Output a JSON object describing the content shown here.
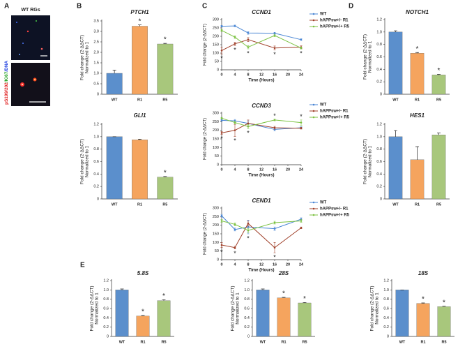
{
  "figure": {
    "panel_labels": [
      "A",
      "B",
      "C",
      "D",
      "E"
    ],
    "image_title": "WT RGs",
    "stain_label": [
      "pS199/202",
      "/Ki67",
      "/DNA"
    ]
  },
  "chart_data": [
    {
      "type": "bar",
      "title": "PTCH1",
      "ylabel": [
        "Fold change (2-ΔΔCT)",
        "Normalized to 1"
      ],
      "categories": [
        "WT",
        "R1",
        "R5"
      ],
      "values": [
        1.0,
        3.25,
        2.4
      ],
      "errors": [
        0.15,
        0.06,
        0.03
      ],
      "colors": [
        "#5b8fcc",
        "#f5a45e",
        "#a8c77c"
      ],
      "significance": [
        null,
        "*",
        "*"
      ],
      "ylim": [
        0,
        3.5
      ],
      "yticks": [
        0,
        0.5,
        {
          "value": 1,
          "label": "1.0"
        },
        1.5,
        {
          "value": 2,
          "label": "2.0"
        },
        2.5,
        {
          "value": 3,
          "label": "3.0"
        },
        3.5
      ]
    },
    {
      "type": "bar",
      "title": "GLI1",
      "ylabel": [
        "Fold change (2-ΔΔCT)",
        "Normalized to 1"
      ],
      "categories": [
        "WT",
        "R1",
        "R5"
      ],
      "values": [
        1.0,
        0.95,
        0.35
      ],
      "errors": [
        0.0,
        0.01,
        0.01
      ],
      "colors": [
        "#5b8fcc",
        "#f5a45e",
        "#a8c77c"
      ],
      "significance": [
        null,
        null,
        "*"
      ],
      "ylim": [
        0,
        1.2
      ],
      "yticks": [
        0,
        0.2,
        0.4,
        0.6,
        0.8,
        {
          "value": 1,
          "label": "1.0"
        },
        1.2
      ]
    },
    {
      "type": "line",
      "title": "CCND1",
      "ylabel": "Fold change (2-ΔΔCT)",
      "xlabel": "Time (Hours)",
      "x": [
        0,
        4,
        8,
        16,
        24
      ],
      "series": [
        {
          "name": "WT",
          "color": "#4a86d4",
          "values": [
            260,
            262,
            220,
            218,
            180
          ],
          "errors": [
            5,
            5,
            8,
            6,
            5
          ]
        },
        {
          "name": "hAPPsw+/- R1",
          "color": "#a0402a",
          "values": [
            115,
            155,
            180,
            130,
            135
          ],
          "errors": [
            20,
            10,
            12,
            12,
            8
          ]
        },
        {
          "name": "hAPPsw+/+ R5",
          "color": "#7cc242",
          "values": [
            235,
            195,
            135,
            205,
            130
          ],
          "errors": [
            6,
            8,
            10,
            8,
            6
          ]
        }
      ],
      "significance": [
        "*",
        "*",
        "*",
        "*",
        "*"
      ],
      "xlim": [
        0,
        24
      ],
      "xticks": [
        0,
        4,
        8,
        12,
        16,
        20,
        24
      ],
      "ylim": [
        0,
        300
      ],
      "yticks": [
        0,
        50,
        100,
        150,
        200,
        250,
        300
      ]
    },
    {
      "type": "line",
      "title": "CCND3",
      "ylabel": "Fold change (2-ΔΔCT)",
      "xlabel": "Time (Hours)",
      "x": [
        0,
        4,
        8,
        16,
        24
      ],
      "series": [
        {
          "name": "WT",
          "color": "#4a86d4",
          "values": [
            258,
            255,
            240,
            205,
            215
          ],
          "errors": [
            5,
            8,
            15,
            8,
            5
          ]
        },
        {
          "name": "hAPPsw+/- R1",
          "color": "#a0402a",
          "values": [
            185,
            200,
            240,
            215,
            212
          ],
          "errors": [
            8,
            35,
            20,
            8,
            5
          ]
        },
        {
          "name": "hAPPsw+/+ R5",
          "color": "#7cc242",
          "values": [
            270,
            245,
            222,
            260,
            245
          ],
          "errors": [
            5,
            8,
            12,
            5,
            15
          ]
        }
      ],
      "significance": [
        "*",
        "*",
        "*",
        "*",
        "*"
      ],
      "xlim": [
        0,
        24
      ],
      "xticks": [
        0,
        4,
        8,
        12,
        16,
        20,
        24
      ],
      "ylim": [
        0,
        300
      ],
      "yticks": [
        0,
        50,
        100,
        150,
        200,
        250,
        300
      ]
    },
    {
      "type": "line",
      "title": "CEND1",
      "ylabel": "Fold change (2-ΔΔCT)",
      "xlabel": "Time (Hours)",
      "x": [
        0,
        4,
        8,
        16,
        24
      ],
      "series": [
        {
          "name": "WT",
          "color": "#4a86d4",
          "values": [
            255,
            175,
            190,
            180,
            235
          ],
          "errors": [
            8,
            8,
            40,
            10,
            8
          ]
        },
        {
          "name": "hAPPsw+/- R1",
          "color": "#a0402a",
          "values": [
            85,
            70,
            210,
            70,
            185
          ],
          "errors": [
            15,
            8,
            15,
            30,
            5
          ]
        },
        {
          "name": "hAPPsw+/+ R5",
          "color": "#7cc242",
          "values": [
            225,
            205,
            170,
            215,
            225
          ],
          "errors": [
            8,
            8,
            12,
            8,
            8
          ]
        }
      ],
      "significance": [
        "*",
        "*",
        "*",
        "*",
        null
      ],
      "xlim": [
        0,
        24
      ],
      "xticks": [
        0,
        4,
        8,
        12,
        16,
        20,
        24
      ],
      "ylim": [
        0,
        300
      ],
      "yticks": [
        0,
        50,
        100,
        150,
        200,
        250,
        300
      ]
    },
    {
      "type": "bar",
      "title": "NOTCH1",
      "ylabel": [
        "Fold change (2-ΔΔCT)",
        "Normalized to 1"
      ],
      "categories": [
        "WT",
        "R1",
        "R5"
      ],
      "values": [
        1.0,
        0.66,
        0.31
      ],
      "errors": [
        0.02,
        0.01,
        0.01
      ],
      "colors": [
        "#5b8fcc",
        "#f5a45e",
        "#a8c77c"
      ],
      "significance": [
        null,
        "*",
        "*"
      ],
      "ylim": [
        0,
        1.2
      ],
      "yticks": [
        0,
        0.2,
        0.4,
        0.6,
        0.8,
        {
          "value": 1,
          "label": "1.0"
        },
        1.2
      ]
    },
    {
      "type": "bar",
      "title": "HES1",
      "ylabel": [
        "Fold change (2-ΔΔCT)",
        "Normalized to 1"
      ],
      "categories": [
        "WT",
        "R1",
        "R5"
      ],
      "values": [
        1.0,
        0.63,
        1.03
      ],
      "errors": [
        0.1,
        0.21,
        0.03
      ],
      "colors": [
        "#5b8fcc",
        "#f5a45e",
        "#a8c77c"
      ],
      "significance": [
        null,
        null,
        null
      ],
      "ylim": [
        0,
        1.2
      ],
      "yticks": [
        0,
        0.2,
        0.4,
        0.6,
        0.8,
        {
          "value": 1,
          "label": "1.0"
        },
        1.2
      ]
    },
    {
      "type": "bar",
      "title": "5.8S",
      "ylabel": [
        "Fold change (2-ΔΔCT)",
        "Normalized to 1"
      ],
      "categories": [
        "WT",
        "R1",
        "R5"
      ],
      "values": [
        1.0,
        0.44,
        0.77
      ],
      "errors": [
        0.02,
        0.01,
        0.02
      ],
      "colors": [
        "#5b8fcc",
        "#f5a45e",
        "#a8c77c"
      ],
      "significance": [
        null,
        "*",
        "*"
      ],
      "ylim": [
        0,
        1.2
      ],
      "yticks": [
        0,
        0.2,
        0.4,
        0.6,
        0.8,
        {
          "value": 1,
          "label": "1.0"
        },
        1.2
      ]
    },
    {
      "type": "bar",
      "title": "28S",
      "ylabel": [
        "Fold change (2-ΔΔCT)",
        "Normalized to 1"
      ],
      "categories": [
        "WT",
        "R1",
        "R5"
      ],
      "values": [
        1.0,
        0.83,
        0.72
      ],
      "errors": [
        0.02,
        0.01,
        0.01
      ],
      "colors": [
        "#5b8fcc",
        "#f5a45e",
        "#a8c77c"
      ],
      "significance": [
        null,
        "*",
        "*"
      ],
      "ylim": [
        0,
        1.2
      ],
      "yticks": [
        0,
        0.2,
        0.4,
        0.6,
        0.8,
        {
          "value": 1,
          "label": "1.0"
        },
        1.2
      ]
    },
    {
      "type": "bar",
      "title": "18S",
      "ylabel": [
        "Fold change (2-ΔΔCT)",
        "Normalized to 1"
      ],
      "categories": [
        "WT",
        "R1",
        "R5"
      ],
      "values": [
        1.0,
        0.71,
        0.64
      ],
      "errors": [
        0.0,
        0.01,
        0.01
      ],
      "colors": [
        "#5b8fcc",
        "#f5a45e",
        "#a8c77c"
      ],
      "significance": [
        null,
        "*",
        "*"
      ],
      "ylim": [
        0,
        1.2
      ],
      "yticks": [
        0,
        0.2,
        0.4,
        0.6,
        0.8,
        {
          "value": 1,
          "label": "1.0"
        },
        1.2
      ]
    }
  ]
}
